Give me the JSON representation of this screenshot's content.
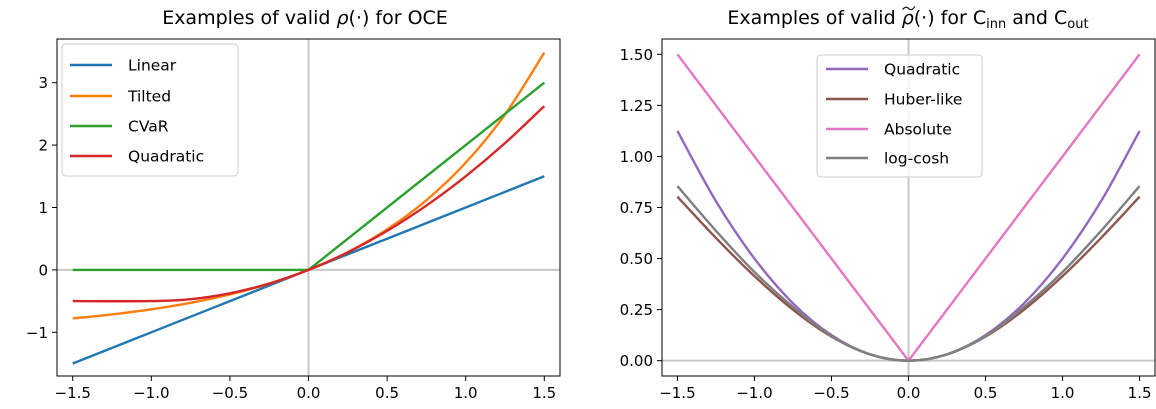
{
  "chart_data": [
    {
      "type": "line",
      "title_parts": [
        "Examples of valid ",
        "ρ",
        "(·) for OCE"
      ],
      "xlim": [
        -1.6,
        1.6
      ],
      "ylim": [
        -1.7,
        3.7
      ],
      "xticks": [
        -1.5,
        -1.0,
        -0.5,
        0.0,
        0.5,
        1.0,
        1.5
      ],
      "xtick_labels": [
        "−1.5",
        "−1.0",
        "−0.5",
        "0.0",
        "0.5",
        "1.0",
        "1.5"
      ],
      "yticks": [
        -1,
        0,
        1,
        2,
        3
      ],
      "ytick_labels": [
        "−1",
        "0",
        "1",
        "2",
        "3"
      ],
      "grid": false,
      "reference_lines": {
        "x": 0,
        "y": 0,
        "color": "#c8c8c8"
      },
      "legend_position": "upper-left",
      "series": [
        {
          "name": "Linear",
          "color": "#1f77b4",
          "x": [
            -1.5,
            -1.0,
            -0.5,
            0.0,
            0.5,
            1.0,
            1.5
          ],
          "y": [
            -1.5,
            -1.0,
            -0.5,
            0.0,
            0.5,
            1.0,
            1.5
          ]
        },
        {
          "name": "Tilted",
          "color": "#ff7f0e",
          "x": [
            -1.5,
            -1.25,
            -1.0,
            -0.75,
            -0.5,
            -0.25,
            0.0,
            0.25,
            0.5,
            0.75,
            1.0,
            1.25,
            1.5
          ],
          "y": [
            -0.777,
            -0.713,
            -0.632,
            -0.528,
            -0.393,
            -0.221,
            0.0,
            0.284,
            0.649,
            1.117,
            1.718,
            2.49,
            3.482
          ]
        },
        {
          "name": "CVaR",
          "color": "#2ca02c",
          "x": [
            -1.5,
            0.0,
            1.5
          ],
          "y": [
            0.0,
            0.0,
            3.0
          ]
        },
        {
          "name": "Quadratic",
          "color": "#d62728",
          "x": [
            -1.5,
            -1.0,
            -0.75,
            -0.5,
            -0.25,
            0.0,
            0.25,
            0.5,
            0.75,
            1.0,
            1.25,
            1.5
          ],
          "y": [
            -0.5,
            -0.5,
            -0.469,
            -0.375,
            -0.219,
            0.0,
            0.281,
            0.625,
            1.031,
            1.5,
            2.031,
            2.625
          ]
        }
      ]
    },
    {
      "type": "line",
      "title_parts": [
        "Examples of valid ",
        "ρ",
        "(·) for C",
        "inn",
        " and C",
        "out"
      ],
      "xlim": [
        -1.6,
        1.6
      ],
      "ylim": [
        -0.075,
        1.575
      ],
      "xticks": [
        -1.5,
        -1.0,
        -0.5,
        0.0,
        0.5,
        1.0,
        1.5
      ],
      "xtick_labels": [
        "−1.5",
        "−1.0",
        "−0.5",
        "0.0",
        "0.5",
        "1.0",
        "1.5"
      ],
      "yticks": [
        0.0,
        0.25,
        0.5,
        0.75,
        1.0,
        1.25,
        1.5
      ],
      "ytick_labels": [
        "0.00",
        "0.25",
        "0.50",
        "0.75",
        "1.00",
        "1.25",
        "1.50"
      ],
      "grid": false,
      "reference_lines": {
        "x": 0,
        "y": 0,
        "color": "#c8c8c8"
      },
      "legend_position": "upper-center",
      "series": [
        {
          "name": "Quadratic",
          "color": "#9467bd",
          "x": [
            -1.5,
            -1.25,
            -1.0,
            -0.75,
            -0.5,
            -0.25,
            0.0,
            0.25,
            0.5,
            0.75,
            1.0,
            1.25,
            1.5
          ],
          "y": [
            1.125,
            0.781,
            0.5,
            0.281,
            0.125,
            0.031,
            0.0,
            0.031,
            0.125,
            0.281,
            0.5,
            0.781,
            1.125
          ]
        },
        {
          "name": "Huber-like",
          "color": "#8c564b",
          "x": [
            -1.5,
            -1.25,
            -1.0,
            -0.75,
            -0.5,
            -0.25,
            0.0,
            0.25,
            0.5,
            0.75,
            1.0,
            1.25,
            1.5
          ],
          "y": [
            0.803,
            0.601,
            0.414,
            0.25,
            0.118,
            0.031,
            0.0,
            0.031,
            0.118,
            0.25,
            0.414,
            0.601,
            0.803
          ]
        },
        {
          "name": "Absolute",
          "color": "#e377c2",
          "x": [
            -1.5,
            0.0,
            1.5
          ],
          "y": [
            1.5,
            0.0,
            1.5
          ]
        },
        {
          "name": "log-cosh",
          "color": "#7f7f7f",
          "x": [
            -1.5,
            -1.25,
            -1.0,
            -0.75,
            -0.5,
            -0.25,
            0.0,
            0.25,
            0.5,
            0.75,
            1.0,
            1.25,
            1.5
          ],
          "y": [
            0.855,
            0.636,
            0.434,
            0.263,
            0.12,
            0.031,
            0.0,
            0.031,
            0.12,
            0.263,
            0.434,
            0.636,
            0.855
          ]
        }
      ]
    }
  ]
}
